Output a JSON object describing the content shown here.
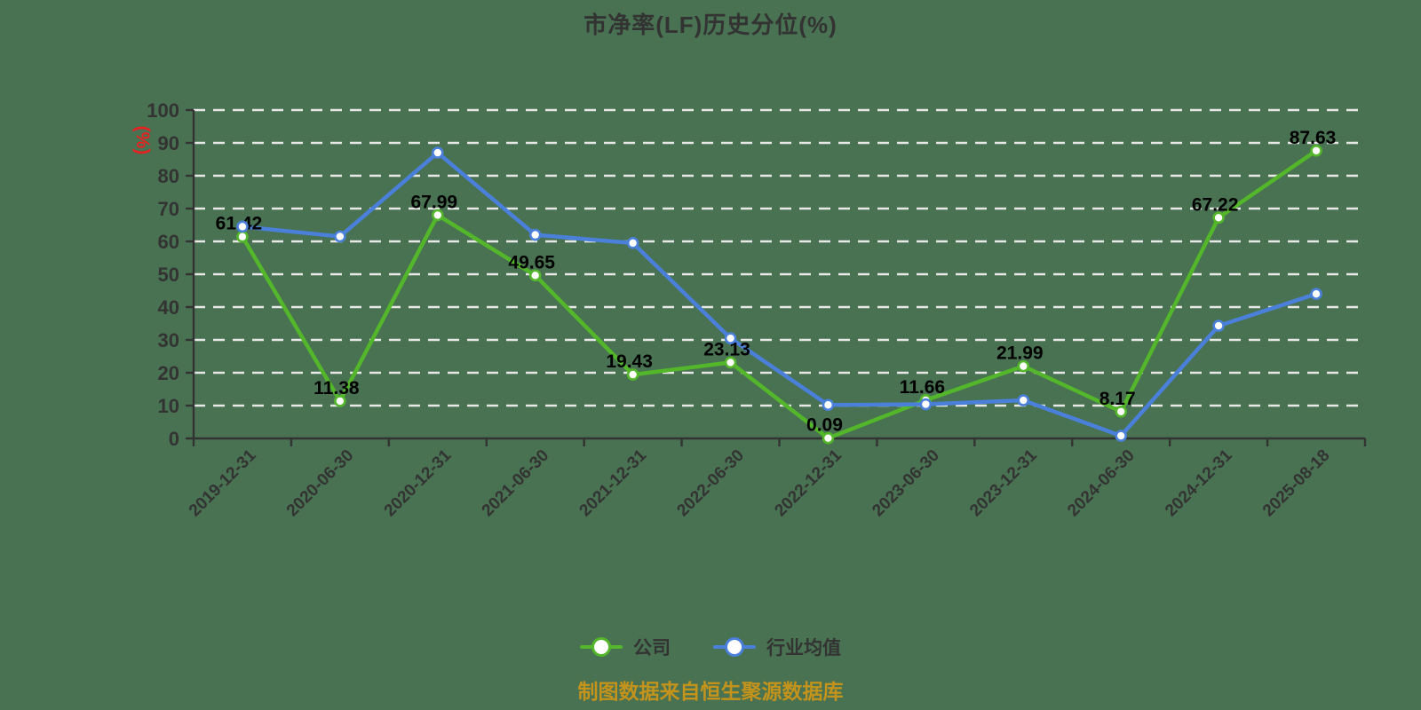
{
  "header": {
    "title": "市净率(LF)历史分位(%)"
  },
  "source_note": "制图数据来自恒生聚源数据库",
  "colors": {
    "background": "#487251",
    "grid": "#e8e8e8",
    "axis": "#333333",
    "tick_text": "#333333",
    "data_label": "#000000",
    "y_name": "#e32222",
    "title_text": "#333333",
    "legend_text": "#333333",
    "source_text": "#c4931c",
    "marker_fill": "#ffffff"
  },
  "y_axis": {
    "name": "(%)",
    "min": 0,
    "max": 100,
    "step": 10,
    "tick_labels": [
      "0",
      "10",
      "20",
      "30",
      "40",
      "50",
      "60",
      "70",
      "80",
      "90",
      "100"
    ]
  },
  "chart_data": {
    "type": "line",
    "title": "市净率(LF)历史分位(%)",
    "xlabel": "",
    "ylabel": "(%)",
    "ylim": [
      0,
      100
    ],
    "grid": true,
    "grid_style": "dashed",
    "legend_position": "bottom",
    "categories": [
      "2019-12-31",
      "2020-06-30",
      "2020-12-31",
      "2021-06-30",
      "2021-12-31",
      "2022-06-30",
      "2022-12-31",
      "2023-06-30",
      "2023-12-31",
      "2024-06-30",
      "2024-12-31",
      "2025-08-18"
    ],
    "series": [
      {
        "name": "公司",
        "color": "#53b62b",
        "labeled": true,
        "values": [
          61.42,
          11.38,
          67.99,
          49.65,
          19.43,
          23.13,
          0.09,
          11.66,
          21.99,
          8.17,
          67.22,
          87.63
        ],
        "labels": [
          "61.42",
          "11.38",
          "67.99",
          "49.65",
          "19.43",
          "23.13",
          "0.09",
          "11.66",
          "21.99",
          "8.17",
          "67.22",
          "87.63"
        ]
      },
      {
        "name": "行业均值",
        "color": "#4a80d9",
        "labeled": false,
        "values": [
          64.5,
          61.5,
          87.0,
          62.0,
          59.5,
          30.5,
          10.2,
          10.4,
          11.6,
          0.8,
          34.3,
          44.0
        ]
      }
    ]
  }
}
